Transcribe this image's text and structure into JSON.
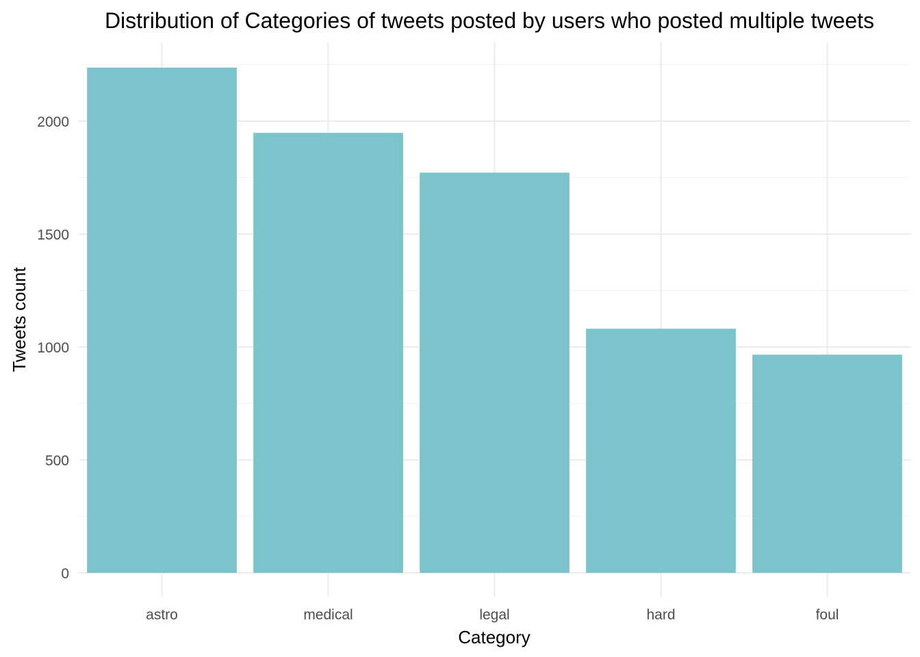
{
  "chart_data": {
    "type": "bar",
    "title": "Distribution of Categories of tweets posted by users who posted multiple tweets",
    "xlabel": "Category",
    "ylabel": "Tweets count",
    "categories": [
      "astro",
      "medical",
      "legal",
      "hard",
      "foul"
    ],
    "values": [
      2237,
      1948,
      1772,
      1081,
      966
    ],
    "ylim": [
      0,
      2350
    ],
    "yticks": [
      0,
      500,
      1000,
      1500,
      2000
    ],
    "ytick_labels": [
      "0",
      "500",
      "1000",
      "1500",
      "2000"
    ],
    "grid": true,
    "legend": "none",
    "bar_color": "#7bc4cc"
  }
}
